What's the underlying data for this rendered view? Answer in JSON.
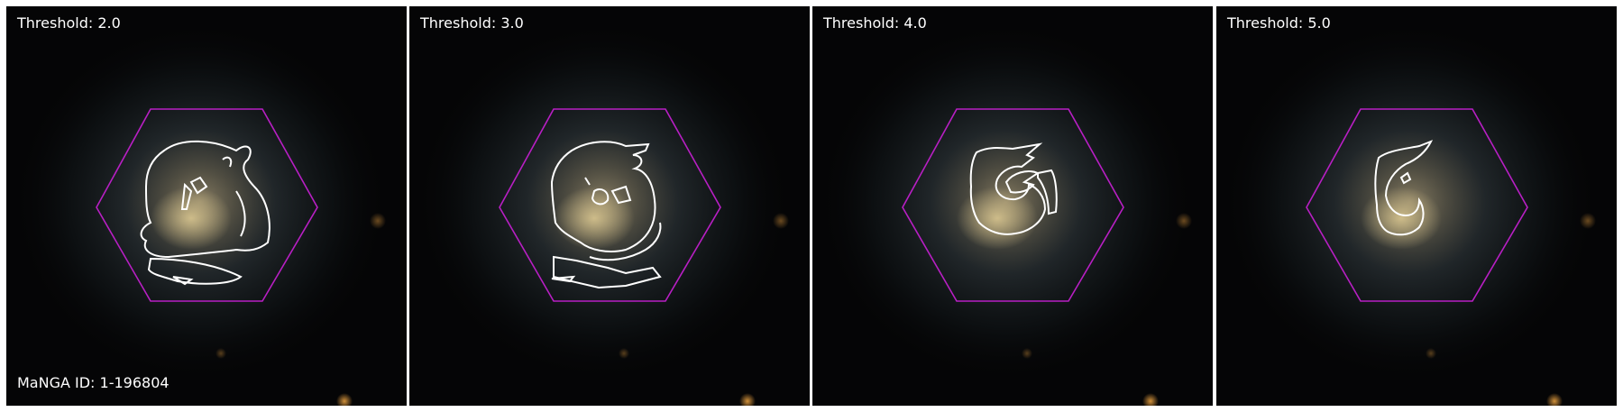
{
  "figure": {
    "panels": [
      {
        "title": "Threshold: 2.0",
        "threshold": 2.0
      },
      {
        "title": "Threshold: 3.0",
        "threshold": 3.0
      },
      {
        "title": "Threshold: 4.0",
        "threshold": 4.0
      },
      {
        "title": "Threshold: 5.0",
        "threshold": 5.0
      }
    ],
    "manga_id_label": "MaNGA ID: 1-196804"
  },
  "colors": {
    "background": "#050506",
    "hexagon": "#b81fc4",
    "contour": "#ffffff",
    "galaxy_core": "#c9b37a",
    "galaxy_disk": "#3a4a52"
  }
}
